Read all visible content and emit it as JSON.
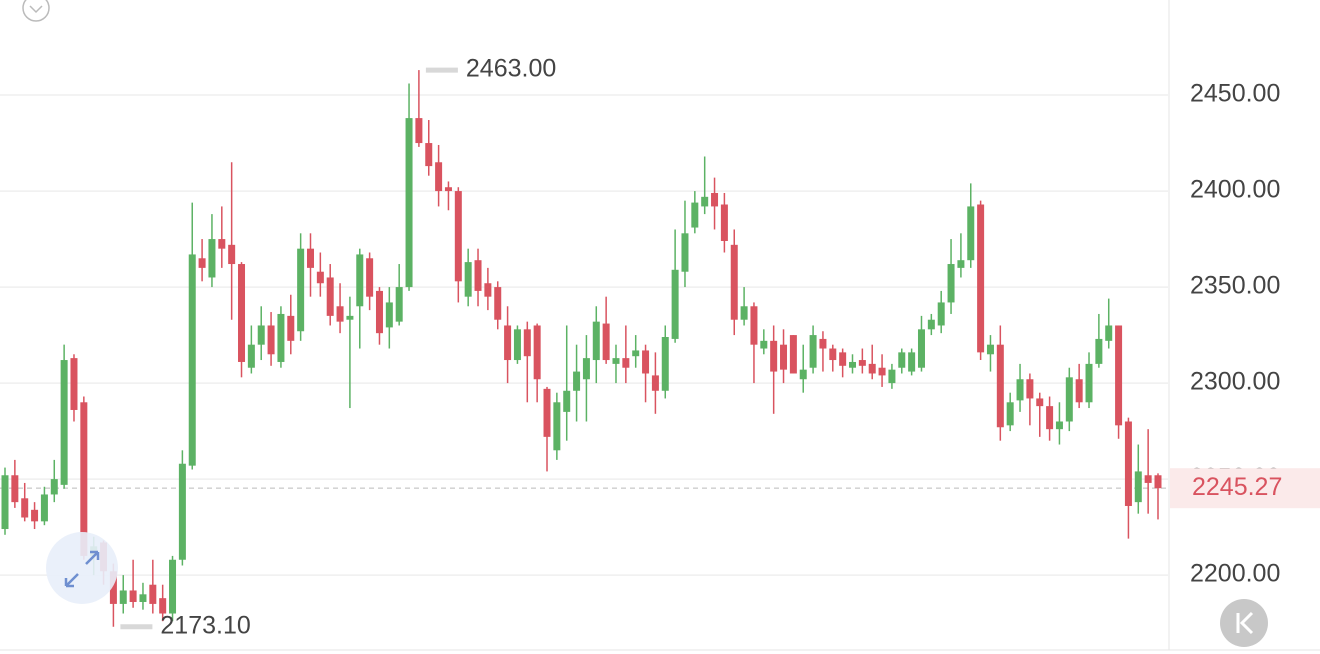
{
  "chart_data": {
    "type": "candlestick",
    "open": [
      2224,
      2252,
      2240,
      2234,
      2228,
      2242,
      2247,
      2313,
      2290,
      2210,
      2217,
      2202,
      2185,
      2192,
      2186,
      2195,
      2188,
      2180,
      2208,
      2257,
      2365,
      2355,
      2375,
      2372,
      2362,
      2308,
      2320,
      2330,
      2311,
      2335,
      2327,
      2370,
      2358,
      2355,
      2340,
      2333,
      2340,
      2365,
      2348,
      2329,
      2332,
      2350,
      2438,
      2425,
      2415,
      2402,
      2400,
      2345,
      2364,
      2352,
      2350,
      2330,
      2312,
      2328,
      2330,
      2297,
      2265,
      2285,
      2296,
      2302,
      2312,
      2331,
      2310,
      2313,
      2314,
      2317,
      2304,
      2296,
      2323,
      2358,
      2381,
      2392,
      2399,
      2393,
      2372,
      2333,
      2340,
      2318,
      2322,
      2320,
      2325,
      2302,
      2308,
      2323,
      2318,
      2316,
      2308,
      2312,
      2310,
      2308,
      2300,
      2308,
      2306,
      2308,
      2328,
      2330,
      2342,
      2360,
      2364,
      2393,
      2315,
      2320,
      2278,
      2291,
      2302,
      2292,
      2288,
      2276,
      2280,
      2302,
      2290,
      2310,
      2322,
      2330,
      2280,
      2238,
      2252,
      2252
    ],
    "high": [
      2256,
      2260,
      2248,
      2238,
      2246,
      2260,
      2320,
      2315,
      2293,
      2220,
      2218,
      2206,
      2200,
      2208,
      2196,
      2208,
      2195,
      2210,
      2265,
      2394,
      2375,
      2388,
      2392,
      2415,
      2363,
      2330,
      2340,
      2337,
      2340,
      2346,
      2378,
      2378,
      2368,
      2362,
      2352,
      2345,
      2370,
      2368,
      2350,
      2350,
      2362,
      2456,
      2463,
      2437,
      2424,
      2405,
      2402,
      2370,
      2370,
      2360,
      2353,
      2340,
      2330,
      2332,
      2331,
      2298,
      2295,
      2330,
      2320,
      2325,
      2340,
      2345,
      2320,
      2330,
      2325,
      2320,
      2316,
      2330,
      2380,
      2395,
      2400,
      2418,
      2407,
      2399,
      2380,
      2350,
      2342,
      2328,
      2330,
      2328,
      2325,
      2320,
      2330,
      2327,
      2320,
      2318,
      2315,
      2318,
      2320,
      2315,
      2310,
      2318,
      2318,
      2335,
      2336,
      2348,
      2375,
      2378,
      2404,
      2395,
      2325,
      2330,
      2295,
      2310,
      2305,
      2295,
      2293,
      2290,
      2308,
      2310,
      2316,
      2336,
      2344,
      2330,
      2282,
      2268,
      2276,
      2253
    ],
    "low": [
      2221,
      2235,
      2228,
      2224,
      2226,
      2238,
      2245,
      2280,
      2208,
      2200,
      2195,
      2173.1,
      2180,
      2183,
      2182,
      2180,
      2176,
      2176,
      2205,
      2255,
      2353,
      2350,
      2360,
      2333,
      2303,
      2305,
      2312,
      2309,
      2308,
      2315,
      2322,
      2345,
      2345,
      2330,
      2326,
      2287,
      2318,
      2338,
      2320,
      2318,
      2330,
      2348,
      2423,
      2408,
      2392,
      2390,
      2342,
      2340,
      2340,
      2338,
      2328,
      2300,
      2310,
      2290,
      2290,
      2254,
      2260,
      2270,
      2280,
      2280,
      2300,
      2310,
      2300,
      2300,
      2308,
      2290,
      2284,
      2292,
      2321,
      2350,
      2378,
      2388,
      2380,
      2368,
      2325,
      2330,
      2300,
      2315,
      2284,
      2300,
      2305,
      2295,
      2305,
      2306,
      2306,
      2303,
      2305,
      2305,
      2302,
      2298,
      2297,
      2305,
      2304,
      2306,
      2325,
      2326,
      2336,
      2355,
      2360,
      2312,
      2306,
      2270,
      2275,
      2285,
      2278,
      2272,
      2270,
      2268,
      2275,
      2287,
      2287,
      2308,
      2318,
      2271,
      2219,
      2232,
      2232,
      2229
    ],
    "close": [
      2252,
      2238,
      2230,
      2228,
      2242,
      2250,
      2312,
      2286,
      2210,
      2215,
      2202,
      2185,
      2192,
      2186,
      2190,
      2185,
      2180,
      2208,
      2258,
      2367,
      2360,
      2375,
      2370,
      2362,
      2311,
      2320,
      2330,
      2315,
      2336,
      2322,
      2370,
      2360,
      2352,
      2335,
      2332,
      2335,
      2367,
      2345,
      2326,
      2342,
      2350,
      2438,
      2425,
      2413,
      2400,
      2400,
      2353,
      2363,
      2348,
      2345,
      2333,
      2312,
      2328,
      2314,
      2302,
      2272,
      2290,
      2296,
      2306,
      2313,
      2332,
      2312,
      2313,
      2308,
      2317,
      2305,
      2296,
      2324,
      2359,
      2378,
      2394,
      2397,
      2392,
      2374,
      2333,
      2340,
      2320,
      2322,
      2306,
      2307,
      2305,
      2307,
      2325,
      2318,
      2312,
      2309,
      2311,
      2309,
      2305,
      2304,
      2307,
      2316,
      2316,
      2328,
      2333,
      2342,
      2362,
      2364,
      2392,
      2316,
      2320,
      2277,
      2290,
      2302,
      2292,
      2288,
      2276,
      2280,
      2303,
      2290,
      2310,
      2323,
      2330,
      2278,
      2236,
      2254,
      2248,
      2245.27
    ],
    "up_color": "#5cb264",
    "down_color": "#d9535f",
    "ylim": [
      2161,
      2499.5
    ],
    "yticks": [
      {
        "value": 2200,
        "label": "2200.00"
      },
      {
        "value": 2250,
        "label": "2250.00"
      },
      {
        "value": 2300,
        "label": "2300.00"
      },
      {
        "value": 2350,
        "label": "2350.00"
      },
      {
        "value": 2400,
        "label": "2400.00"
      },
      {
        "value": 2450,
        "label": "2450.00"
      }
    ],
    "grid": true,
    "max_annotation": {
      "value": 2463,
      "label": "2463.00"
    },
    "min_annotation": {
      "value": 2173.1,
      "label": "2173.10"
    },
    "last_price": {
      "value": 2245.27,
      "label": "2245.27"
    }
  }
}
